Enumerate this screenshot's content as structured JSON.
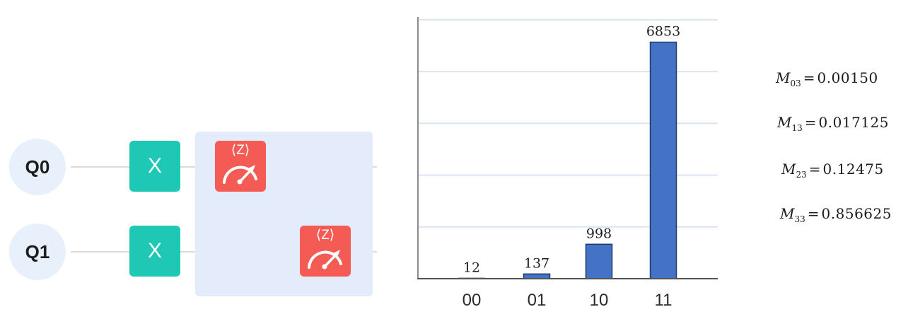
{
  "circuit": {
    "qubits": [
      {
        "label": "Q0",
        "gate": "X",
        "measure_basis": "⟨Z⟩"
      },
      {
        "label": "Q1",
        "gate": "X",
        "measure_basis": "⟨Z⟩"
      }
    ],
    "colors": {
      "qubit_bg": "#e8f0fc",
      "x_gate": "#1ec8b4",
      "measure_gate": "#f45b55",
      "measure_zone": "#e4ecfb"
    }
  },
  "chart_data": {
    "type": "bar",
    "categories": [
      "00",
      "01",
      "10",
      "11"
    ],
    "values": [
      12,
      137,
      998,
      6853
    ],
    "data_labels": [
      "12",
      "137",
      "998",
      "6853"
    ],
    "title": "",
    "xlabel": "",
    "ylabel": "",
    "ylim": [
      0,
      7500
    ],
    "grid": true,
    "bar_color": "#4472c4"
  },
  "metrics": [
    {
      "symbol": "M",
      "subscript": "03",
      "equals": "=",
      "value": "0.00150"
    },
    {
      "symbol": "M",
      "subscript": "13",
      "equals": "=",
      "value": "0.017125"
    },
    {
      "symbol": "M",
      "subscript": "23",
      "equals": "=",
      "value": "0.12475"
    },
    {
      "symbol": "M",
      "subscript": "33",
      "equals": "=",
      "value": "0.856625"
    }
  ]
}
